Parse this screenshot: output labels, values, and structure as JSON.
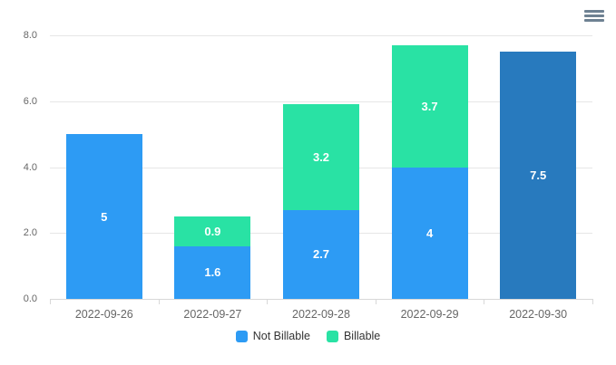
{
  "toolbar": {
    "context_menu_icon": "hamburger-icon",
    "icon_color": "#6e8192"
  },
  "chart_data": {
    "type": "bar",
    "stacked": true,
    "title": "",
    "categories": [
      "2022-09-26",
      "2022-09-27",
      "2022-09-28",
      "2022-09-29",
      "2022-09-30"
    ],
    "series": [
      {
        "name": "Not Billable",
        "color": "#2d9bf4",
        "values": [
          5,
          1.6,
          2.7,
          4,
          7.5
        ]
      },
      {
        "name": "Billable",
        "color": "#29e2a4",
        "values": [
          0,
          0.9,
          3.2,
          3.7,
          0
        ]
      }
    ],
    "bars": [
      {
        "category": "2022-09-26",
        "segments": [
          {
            "series": "Not Billable",
            "value": 5,
            "label": "5",
            "color": "#2d9bf4"
          }
        ]
      },
      {
        "category": "2022-09-27",
        "segments": [
          {
            "series": "Not Billable",
            "value": 1.6,
            "label": "1.6",
            "color": "#2d9bf4"
          },
          {
            "series": "Billable",
            "value": 0.9,
            "label": "0.9",
            "color": "#29e2a4"
          }
        ]
      },
      {
        "category": "2022-09-28",
        "segments": [
          {
            "series": "Not Billable",
            "value": 2.7,
            "label": "2.7",
            "color": "#2d9bf4"
          },
          {
            "series": "Billable",
            "value": 3.2,
            "label": "3.2",
            "color": "#29e2a4"
          }
        ]
      },
      {
        "category": "2022-09-29",
        "segments": [
          {
            "series": "Not Billable",
            "value": 4,
            "label": "4",
            "color": "#2d9bf4"
          },
          {
            "series": "Billable",
            "value": 3.7,
            "label": "3.7",
            "color": "#29e2a4"
          }
        ]
      },
      {
        "category": "2022-09-30",
        "segments": [
          {
            "series": "Not Billable",
            "value": 7.5,
            "label": "7.5",
            "color": "#287abe"
          }
        ]
      }
    ],
    "y_axis": {
      "min": 0,
      "max": 8,
      "tick_interval": 2,
      "tick_labels": [
        "0.0",
        "2.0",
        "4.0",
        "6.0",
        "8.0"
      ]
    },
    "xlabel": "",
    "ylabel": "",
    "grid": true,
    "legend_position": "bottom",
    "colors": {
      "grid": "#e6e6e6",
      "axis_line": "#d8d8d8",
      "tick": "#d8d8d8",
      "axis_text": "#666666",
      "legend_text": "#333333",
      "value_label": "#ffffff",
      "background": "#ffffff"
    }
  }
}
